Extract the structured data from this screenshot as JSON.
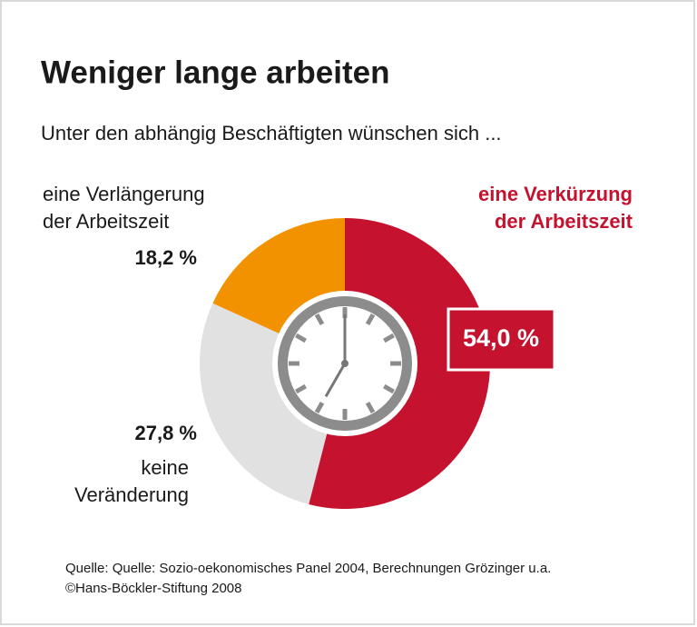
{
  "chart_data": {
    "type": "pie",
    "title": "Weniger lange arbeiten",
    "subtitle": "Unter den abhängig Beschäftigten wünschen sich ...",
    "categories": [
      "eine Verkürzung\nder Arbeitszeit",
      "keine\nVeränderung",
      "eine Verlängerung\nder Arbeitszeit"
    ],
    "values": [
      54.0,
      27.8,
      18.2
    ],
    "value_labels": [
      "54,0 %",
      "27,8 %",
      "18,2 %"
    ],
    "colors": [
      "#c4122f",
      "#e1e1e1",
      "#f39200"
    ],
    "source": [
      "Quelle: Quelle: Sozio-oekonomisches Panel 2004, Berechnungen Grözinger u.a.",
      "©Hans-Böckler-Stiftung 2008"
    ]
  }
}
